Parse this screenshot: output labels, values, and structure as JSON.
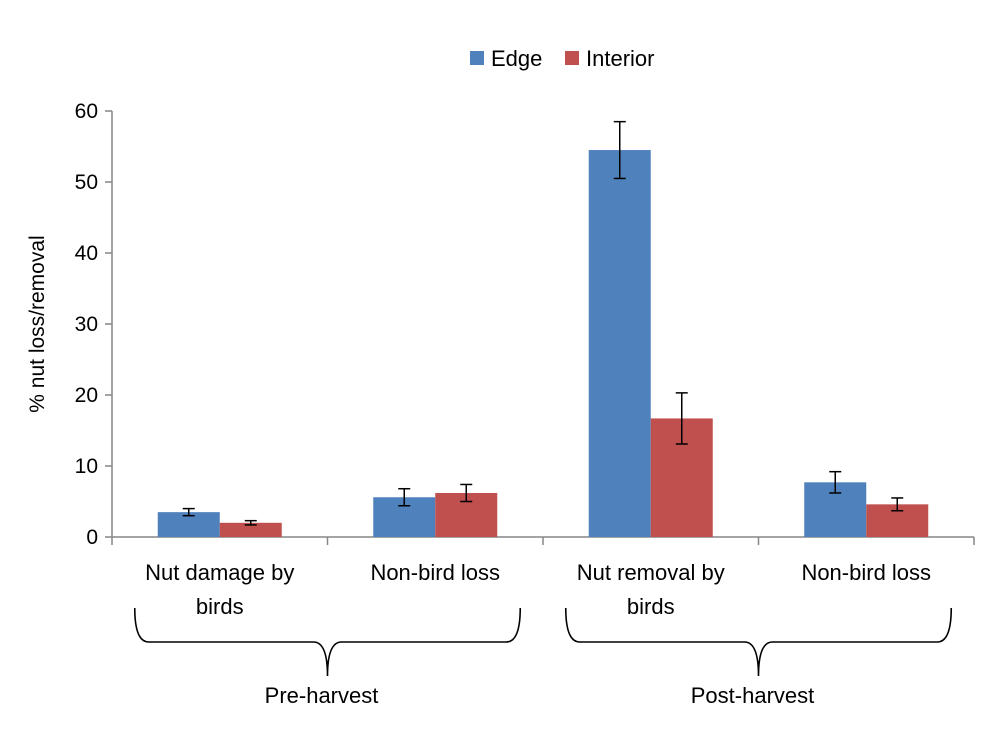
{
  "chart_data": {
    "type": "bar",
    "title": "",
    "ylabel": "% nut loss/removal",
    "ylim": [
      0,
      60
    ],
    "yticks": [
      0,
      10,
      20,
      30,
      40,
      50,
      60
    ],
    "grid": false,
    "legend_position": "top-center",
    "categories": [
      [
        "Nut damage by",
        "birds"
      ],
      [
        "Non-bird loss"
      ],
      [
        "Nut removal by",
        "birds"
      ],
      [
        "Non-bird loss"
      ]
    ],
    "groups": [
      {
        "label": "Pre-harvest",
        "categories": [
          0,
          1
        ]
      },
      {
        "label": "Post-harvest",
        "categories": [
          2,
          3
        ]
      }
    ],
    "series": [
      {
        "name": "Edge",
        "color": "#4F81BD",
        "values": [
          3.5,
          5.6,
          54.5,
          7.7
        ],
        "errors": [
          0.5,
          1.2,
          4.0,
          1.5
        ]
      },
      {
        "name": "Interior",
        "color": "#C0504D",
        "values": [
          2.0,
          6.2,
          16.7,
          4.6
        ],
        "errors": [
          0.3,
          1.2,
          3.6,
          0.9
        ]
      }
    ]
  }
}
